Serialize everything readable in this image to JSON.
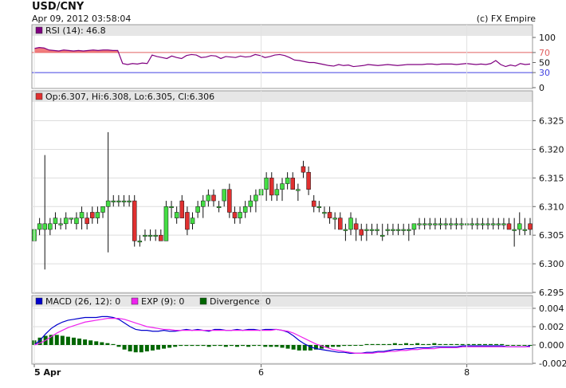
{
  "header": {
    "symbol": "USD/CNY",
    "timestamp": "Apr 09, 2012 03:58:04",
    "credit": "(c) FX Empire"
  },
  "colors": {
    "up": "#44dd44",
    "down": "#e03030",
    "rsi_line": "#800080",
    "rsi_overbought": "#e06060",
    "rsi_oversold": "#4040e0",
    "macd": "#0000cc",
    "exp": "#ee22ee",
    "divergence": "#006600",
    "header_bar": "#e6e6e6"
  },
  "rsi_panel": {
    "legend": "RSI (14): 46.8",
    "ticks": [
      "100",
      "70",
      "50",
      "30",
      "0"
    ]
  },
  "price_panel": {
    "legend": "Op:6.307, Hi:6.308, Lo:6.305, Cl:6.306",
    "ticks": [
      "6.325",
      "6.320",
      "6.315",
      "6.310",
      "6.305",
      "6.300",
      "6.295"
    ]
  },
  "macd_panel": {
    "legend_macd": "MACD (26, 12): 0",
    "legend_exp": "EXP (9): 0",
    "legend_div": "Divergence: 0",
    "ticks": [
      "0.004",
      "0.002",
      "0.000",
      "-0.002"
    ]
  },
  "x_axis": {
    "labels": [
      {
        "text": "5 Apr",
        "bold": true,
        "index": 0
      },
      {
        "text": "6",
        "bold": false,
        "index": 43
      },
      {
        "text": "8",
        "bold": false,
        "index": 82
      }
    ]
  },
  "chart_data": [
    {
      "type": "candlestick",
      "title": "USD/CNY",
      "ylim": [
        6.295,
        6.328
      ],
      "ohlc": [
        [
          6.304,
          6.307,
          6.302,
          6.306
        ],
        [
          6.306,
          6.308,
          6.305,
          6.307
        ],
        [
          6.306,
          6.319,
          6.299,
          6.307
        ],
        [
          6.306,
          6.308,
          6.305,
          6.307
        ],
        [
          6.307,
          6.309,
          6.306,
          6.308
        ],
        [
          6.307,
          6.308,
          6.306,
          6.307
        ],
        [
          6.307,
          6.309,
          6.306,
          6.308
        ],
        [
          6.308,
          6.308,
          6.307,
          6.308
        ],
        [
          6.307,
          6.309,
          6.306,
          6.308
        ],
        [
          6.308,
          6.31,
          6.306,
          6.309
        ],
        [
          6.308,
          6.309,
          6.306,
          6.307
        ],
        [
          6.309,
          6.31,
          6.307,
          6.308
        ],
        [
          6.308,
          6.31,
          6.307,
          6.309
        ],
        [
          6.309,
          6.31,
          6.308,
          6.31
        ],
        [
          6.31,
          6.323,
          6.302,
          6.311
        ],
        [
          6.311,
          6.312,
          6.31,
          6.311
        ],
        [
          6.311,
          6.312,
          6.31,
          6.311
        ],
        [
          6.311,
          6.312,
          6.31,
          6.311
        ],
        [
          6.311,
          6.312,
          6.31,
          6.311
        ],
        [
          6.311,
          6.312,
          6.303,
          6.304
        ],
        [
          6.304,
          6.305,
          6.303,
          6.304
        ],
        [
          6.305,
          6.306,
          6.304,
          6.305
        ],
        [
          6.305,
          6.306,
          6.304,
          6.305
        ],
        [
          6.305,
          6.306,
          6.304,
          6.305
        ],
        [
          6.305,
          6.306,
          6.304,
          6.304
        ],
        [
          6.304,
          6.311,
          6.304,
          6.31
        ],
        [
          6.31,
          6.311,
          6.308,
          6.31
        ],
        [
          6.308,
          6.31,
          6.307,
          6.309
        ],
        [
          6.311,
          6.312,
          6.308,
          6.308
        ],
        [
          6.309,
          6.31,
          6.305,
          6.306
        ],
        [
          6.307,
          6.309,
          6.306,
          6.308
        ],
        [
          6.309,
          6.311,
          6.308,
          6.31
        ],
        [
          6.31,
          6.312,
          6.308,
          6.311
        ],
        [
          6.311,
          6.313,
          6.31,
          6.312
        ],
        [
          6.312,
          6.313,
          6.31,
          6.311
        ],
        [
          6.31,
          6.311,
          6.309,
          6.31
        ],
        [
          6.311,
          6.313,
          6.31,
          6.313
        ],
        [
          6.313,
          6.314,
          6.308,
          6.309
        ],
        [
          6.309,
          6.31,
          6.307,
          6.308
        ],
        [
          6.308,
          6.31,
          6.307,
          6.309
        ],
        [
          6.309,
          6.311,
          6.308,
          6.31
        ],
        [
          6.31,
          6.312,
          6.309,
          6.311
        ],
        [
          6.311,
          6.313,
          6.309,
          6.312
        ],
        [
          6.312,
          6.314,
          6.31,
          6.313
        ],
        [
          6.313,
          6.316,
          6.311,
          6.315
        ],
        [
          6.315,
          6.316,
          6.311,
          6.312
        ],
        [
          6.312,
          6.314,
          6.311,
          6.313
        ],
        [
          6.313,
          6.315,
          6.311,
          6.314
        ],
        [
          6.314,
          6.316,
          6.313,
          6.315
        ],
        [
          6.315,
          6.316,
          6.313,
          6.313
        ],
        [
          6.313,
          6.314,
          6.311,
          6.313
        ],
        [
          6.317,
          6.318,
          6.315,
          6.316
        ],
        [
          6.316,
          6.317,
          6.312,
          6.313
        ],
        [
          6.311,
          6.312,
          6.309,
          6.31
        ],
        [
          6.31,
          6.311,
          6.309,
          6.31
        ],
        [
          6.309,
          6.31,
          6.308,
          6.309
        ],
        [
          6.309,
          6.31,
          6.307,
          6.308
        ],
        [
          6.308,
          6.309,
          6.306,
          6.308
        ],
        [
          6.308,
          6.309,
          6.306,
          6.306
        ],
        [
          6.306,
          6.307,
          6.304,
          6.306
        ],
        [
          6.306,
          6.309,
          6.305,
          6.308
        ],
        [
          6.307,
          6.308,
          6.304,
          6.306
        ],
        [
          6.306,
          6.307,
          6.304,
          6.305
        ],
        [
          6.306,
          6.307,
          6.304,
          6.306
        ],
        [
          6.306,
          6.307,
          6.305,
          6.306
        ],
        [
          6.306,
          6.307,
          6.305,
          6.306
        ],
        [
          6.305,
          6.307,
          6.304,
          6.305
        ],
        [
          6.306,
          6.307,
          6.305,
          6.306
        ],
        [
          6.306,
          6.307,
          6.305,
          6.306
        ],
        [
          6.306,
          6.307,
          6.305,
          6.306
        ],
        [
          6.306,
          6.307,
          6.305,
          6.306
        ],
        [
          6.306,
          6.307,
          6.304,
          6.306
        ],
        [
          6.306,
          6.307,
          6.305,
          6.307
        ],
        [
          6.307,
          6.308,
          6.306,
          6.307
        ],
        [
          6.307,
          6.308,
          6.306,
          6.307
        ],
        [
          6.307,
          6.308,
          6.306,
          6.307
        ],
        [
          6.307,
          6.308,
          6.306,
          6.307
        ],
        [
          6.307,
          6.308,
          6.306,
          6.307
        ],
        [
          6.307,
          6.308,
          6.306,
          6.307
        ],
        [
          6.307,
          6.308,
          6.306,
          6.307
        ],
        [
          6.307,
          6.308,
          6.306,
          6.307
        ],
        [
          6.307,
          6.308,
          6.306,
          6.307
        ],
        [
          6.307,
          6.308,
          6.306,
          6.307
        ],
        [
          6.307,
          6.308,
          6.306,
          6.307
        ],
        [
          6.307,
          6.308,
          6.306,
          6.307
        ],
        [
          6.307,
          6.308,
          6.306,
          6.307
        ],
        [
          6.307,
          6.308,
          6.306,
          6.307
        ],
        [
          6.307,
          6.308,
          6.306,
          6.307
        ],
        [
          6.307,
          6.308,
          6.306,
          6.307
        ],
        [
          6.307,
          6.308,
          6.306,
          6.307
        ],
        [
          6.307,
          6.308,
          6.306,
          6.306
        ],
        [
          6.306,
          6.308,
          6.303,
          6.306
        ],
        [
          6.306,
          6.309,
          6.305,
          6.307
        ],
        [
          6.306,
          6.308,
          6.305,
          6.306
        ],
        [
          6.307,
          6.308,
          6.305,
          6.306
        ]
      ]
    },
    {
      "type": "line",
      "title": "RSI (14): 46.8",
      "ylim": [
        0,
        100
      ],
      "levels": [
        70,
        30
      ],
      "values": [
        78,
        80,
        79,
        75,
        74,
        73,
        75,
        74,
        73,
        74,
        73,
        74,
        75,
        74,
        75,
        75,
        74,
        74,
        48,
        46,
        48,
        47,
        49,
        48,
        65,
        62,
        60,
        58,
        63,
        60,
        58,
        64,
        66,
        65,
        60,
        61,
        64,
        63,
        58,
        62,
        61,
        60,
        63,
        61,
        62,
        66,
        64,
        60,
        62,
        65,
        66,
        64,
        60,
        55,
        54,
        52,
        50,
        50,
        48,
        46,
        44,
        43,
        46,
        44,
        45,
        42,
        43,
        44,
        46,
        45,
        44,
        45,
        46,
        45,
        44,
        45,
        46,
        46,
        46,
        46,
        47,
        47,
        46,
        47,
        47,
        47,
        46,
        47,
        48,
        47,
        46,
        47,
        46,
        48,
        54,
        46,
        42,
        45,
        43,
        48,
        46,
        47
      ]
    },
    {
      "type": "line",
      "title": "MACD",
      "ylim": [
        -0.002,
        0.004
      ],
      "series": [
        {
          "name": "MACD (26, 12): 0",
          "values": [
            0,
            0.0005,
            0.0012,
            0.0018,
            0.0022,
            0.0025,
            0.0027,
            0.0028,
            0.0029,
            0.003,
            0.003,
            0.003,
            0.0031,
            0.0031,
            0.003,
            0.0028,
            0.0024,
            0.002,
            0.0017,
            0.0016,
            0.0016,
            0.0015,
            0.0015,
            0.0016,
            0.0015,
            0.0015,
            0.0016,
            0.0017,
            0.0016,
            0.0017,
            0.0016,
            0.0015,
            0.0017,
            0.0017,
            0.0016,
            0.0016,
            0.0017,
            0.0016,
            0.0017,
            0.0017,
            0.0016,
            0.0017,
            0.0017,
            0.0017,
            0.0016,
            0.0014,
            0.001,
            0.0005,
            0.0001,
            -0.0002,
            -0.0004,
            -0.0005,
            -0.0006,
            -0.0007,
            -0.0008,
            -0.0008,
            -0.0009,
            -0.0009,
            -0.0009,
            -0.0008,
            -0.0008,
            -0.0007,
            -0.0007,
            -0.0006,
            -0.0005,
            -0.0005,
            -0.0004,
            -0.0004,
            -0.0003,
            -0.0003,
            -0.0003,
            -0.0002,
            -0.0002,
            -0.0002,
            -0.0002,
            -0.0002,
            -0.0001,
            -0.0001,
            -0.0001,
            -0.0001,
            -0.0001,
            -0.0001,
            -0.0001,
            -0.0001,
            -0.0002,
            -0.0002,
            -0.0002,
            -0.0002,
            -0.0001
          ]
        },
        {
          "name": "EXP (9): 0",
          "values": [
            0,
            0.0002,
            0.0005,
            0.0009,
            0.0013,
            0.0016,
            0.0019,
            0.0021,
            0.0023,
            0.0025,
            0.0026,
            0.0027,
            0.0028,
            0.0029,
            0.0029,
            0.0029,
            0.0028,
            0.0026,
            0.0024,
            0.0022,
            0.002,
            0.0019,
            0.0018,
            0.0017,
            0.0017,
            0.0016,
            0.0016,
            0.0016,
            0.0016,
            0.0016,
            0.0016,
            0.0016,
            0.0016,
            0.0016,
            0.0016,
            0.0016,
            0.0016,
            0.0016,
            0.0016,
            0.0016,
            0.0016,
            0.0016,
            0.0016,
            0.0017,
            0.0016,
            0.0015,
            0.0013,
            0.001,
            0.0007,
            0.0004,
            0.0001,
            -0.0001,
            -0.0003,
            -0.0005,
            -0.0006,
            -0.0007,
            -0.0008,
            -0.0009,
            -0.0009,
            -0.0009,
            -0.0009,
            -0.0008,
            -0.0008,
            -0.0007,
            -0.0007,
            -0.0006,
            -0.0006,
            -0.0005,
            -0.0005,
            -0.0004,
            -0.0004,
            -0.0004,
            -0.0003,
            -0.0003,
            -0.0003,
            -0.0003,
            -0.0002,
            -0.0002,
            -0.0002,
            -0.0002,
            -0.0002,
            -0.0002,
            -0.0002,
            -0.0002,
            -0.0002,
            -0.0002,
            -0.0002,
            -0.0002,
            -0.0002
          ]
        },
        {
          "name": "Divergence: 0",
          "type": "bar",
          "values": [
            0.0005,
            0.0008,
            0.001,
            0.0011,
            0.0011,
            0.001,
            0.0009,
            0.0008,
            0.0007,
            0.0006,
            0.0005,
            0.0004,
            0.0003,
            0.0002,
            0.0001,
            -0.0002,
            -0.0005,
            -0.0007,
            -0.0008,
            -0.0008,
            -0.0007,
            -0.0006,
            -0.0005,
            -0.0004,
            -0.0003,
            -0.0002,
            -0.0001,
            -0.0001,
            -0.0001,
            -0.0001,
            -0.0001,
            -0.0002,
            -0.0001,
            -0.0001,
            -0.0002,
            -0.0001,
            -0.0002,
            -0.0001,
            -0.0002,
            -0.0001,
            -0.0001,
            -0.0002,
            -0.0002,
            -0.0002,
            -0.0003,
            -0.0004,
            -0.0005,
            -0.0006,
            -0.0006,
            -0.0006,
            -0.0005,
            -0.0004,
            -0.0003,
            -0.0002,
            -0.0002,
            -0.0001,
            -0.0001,
            0,
            0,
            0.0001,
            0.0001,
            0.0001,
            0.0001,
            0.0001,
            0.0002,
            0.0001,
            0.0002,
            0.0001,
            0.0002,
            0.0001,
            0.0001,
            0.0002,
            0.0001,
            0.0001,
            0.0001,
            0.0001,
            0.0001,
            0.0001,
            0.0001,
            0.0001,
            0.0001,
            0.0001,
            0.0001,
            0.0001,
            0,
            0,
            0,
            0,
            0
          ]
        }
      ]
    }
  ]
}
